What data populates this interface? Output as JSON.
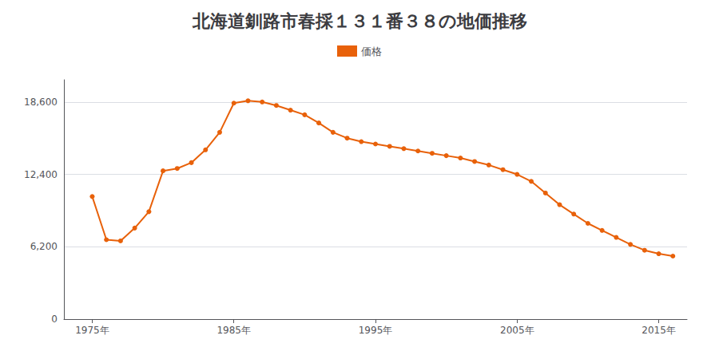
{
  "chart_data": {
    "type": "line",
    "title": "北海道釧路市春採１３１番３８の地価推移",
    "x": [
      1975,
      1976,
      1977,
      1978,
      1979,
      1980,
      1981,
      1982,
      1983,
      1984,
      1985,
      1986,
      1987,
      1988,
      1989,
      1990,
      1991,
      1992,
      1993,
      1994,
      1995,
      1996,
      1997,
      1998,
      1999,
      2000,
      2001,
      2002,
      2003,
      2004,
      2005,
      2006,
      2007,
      2008,
      2009,
      2010,
      2011,
      2012,
      2013,
      2014,
      2015,
      2016
    ],
    "series": [
      {
        "name": "価格",
        "color": "#E8610A",
        "marker": "circle",
        "values": [
          10500,
          6800,
          6700,
          7800,
          9200,
          12700,
          12900,
          13400,
          14500,
          16000,
          18500,
          18700,
          18600,
          18300,
          17900,
          17500,
          16800,
          16000,
          15500,
          15200,
          15000,
          14800,
          14600,
          14400,
          14200,
          14000,
          13800,
          13500,
          13200,
          12800,
          12400,
          11800,
          10800,
          9800,
          9000,
          8200,
          7600,
          7000,
          6400,
          5900,
          5600,
          5400
        ]
      }
    ],
    "xlim": [
      1973,
      2017
    ],
    "xticks": [
      {
        "value": 1975,
        "label": "1975年"
      },
      {
        "value": 1985,
        "label": "1985年"
      },
      {
        "value": 1995,
        "label": "1995年"
      },
      {
        "value": 2005,
        "label": "2005年"
      },
      {
        "value": 2015,
        "label": "2015年"
      }
    ],
    "ylim": [
      0,
      20500
    ],
    "yticks": [
      0,
      {
        "value": 6200,
        "label": "6,200"
      },
      {
        "value": 12400,
        "label": "12,400"
      },
      {
        "value": 18600,
        "label": "18,600"
      }
    ],
    "grid": true,
    "legend": "top"
  }
}
